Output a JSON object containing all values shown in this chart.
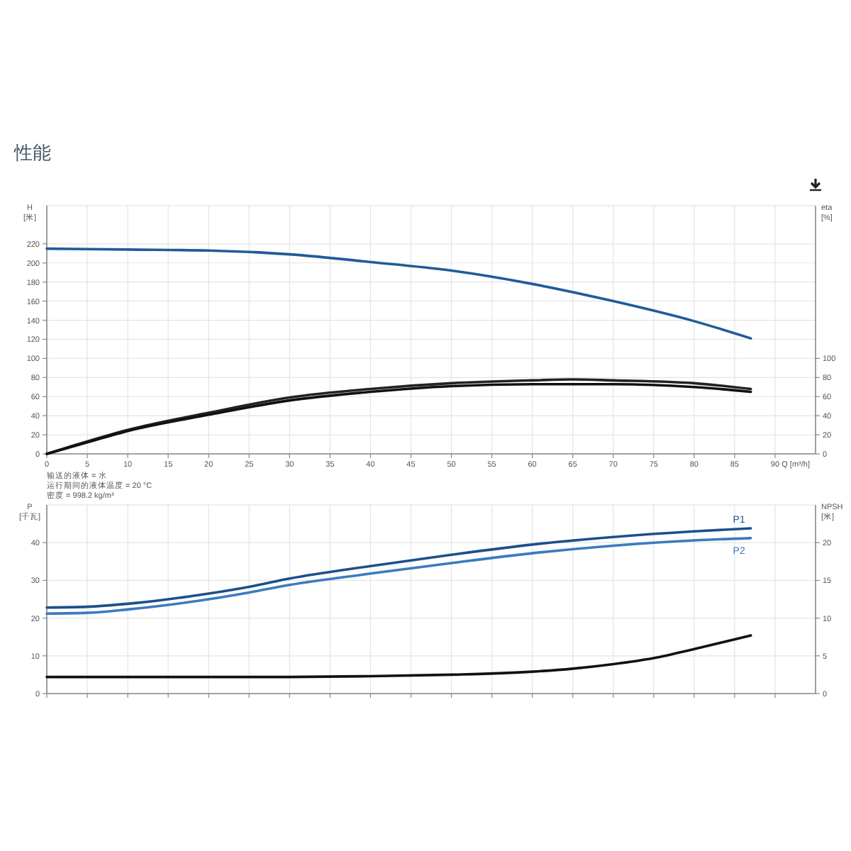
{
  "chart_data": [
    {
      "type": "line",
      "title": "性能",
      "xlabel": "Q [m³/h]",
      "ylabel": "H\n[米]",
      "y2label": "eta\n[%]",
      "xlim": [
        0,
        95
      ],
      "xticks": [
        0,
        5,
        10,
        15,
        20,
        25,
        30,
        35,
        40,
        45,
        50,
        55,
        60,
        65,
        70,
        75,
        80,
        85,
        90
      ],
      "ylim": [
        0,
        260
      ],
      "yticks": [
        0,
        20,
        40,
        60,
        80,
        100,
        120,
        140,
        160,
        180,
        200,
        220
      ],
      "y2lim": [
        0,
        260
      ],
      "y2ticks": [
        0,
        20,
        40,
        60,
        80,
        100
      ],
      "grid": true,
      "annotations": [
        "输送的液体 = 水",
        "运行期间的液体温度 = 20 °C",
        "密度 = 998.2 kg/m³"
      ],
      "series": [
        {
          "color": "#1f5c99",
          "x": [
            0,
            10,
            20,
            30,
            40,
            50,
            60,
            70,
            80,
            87
          ],
          "values": [
            215,
            214,
            213,
            209,
            201,
            192,
            178,
            160,
            139,
            121
          ]
        },
        {
          "color": "#222222",
          "axis": "y2",
          "x": [
            0,
            5,
            10,
            20,
            30,
            40,
            50,
            60,
            65,
            70,
            80,
            87
          ],
          "values": [
            0,
            13,
            25,
            43,
            59,
            68,
            74,
            77,
            78,
            77,
            74,
            68
          ]
        },
        {
          "color": "#111111",
          "axis": "y2",
          "x": [
            0,
            5,
            10,
            20,
            30,
            40,
            50,
            60,
            65,
            70,
            80,
            87
          ],
          "values": [
            0,
            12,
            24,
            41,
            56,
            65,
            71,
            73,
            73,
            73,
            70,
            65
          ]
        }
      ]
    },
    {
      "type": "line",
      "ylabel": "P\n[千瓦]",
      "y2label": "NPSH\n[米]",
      "xlim": [
        0,
        95
      ],
      "xticks": [
        0,
        5,
        10,
        15,
        20,
        25,
        30,
        35,
        40,
        45,
        50,
        55,
        60,
        65,
        70,
        75,
        80,
        85,
        90
      ],
      "ylim": [
        0,
        50
      ],
      "yticks": [
        0,
        10,
        20,
        30,
        40
      ],
      "y2lim": [
        0,
        25
      ],
      "y2ticks": [
        0,
        5,
        10,
        15,
        20
      ],
      "grid": true,
      "tick_labels": "y",
      "series": [
        {
          "name": "P1",
          "color": "#1d4f8a",
          "x": [
            0,
            5,
            10,
            15,
            20,
            25,
            30,
            40,
            50,
            60,
            70,
            80,
            87
          ],
          "values": [
            22.8,
            23,
            23.8,
            25,
            26.5,
            28.3,
            30.5,
            33.8,
            36.8,
            39.5,
            41.5,
            43,
            43.8
          ]
        },
        {
          "name": "P2",
          "color": "#3a7bbf",
          "x": [
            0,
            5,
            10,
            15,
            20,
            25,
            30,
            40,
            50,
            60,
            70,
            80,
            87
          ],
          "values": [
            21.2,
            21.4,
            22.3,
            23.5,
            25,
            26.8,
            28.8,
            31.8,
            34.6,
            37.2,
            39.2,
            40.6,
            41.2
          ]
        },
        {
          "color": "#111111",
          "axis": "y2",
          "x": [
            0,
            30,
            40,
            50,
            60,
            65,
            70,
            75,
            80,
            87
          ],
          "values": [
            2.2,
            2.2,
            2.3,
            2.5,
            2.9,
            3.3,
            3.9,
            4.7,
            5.9,
            7.7
          ]
        }
      ]
    }
  ]
}
